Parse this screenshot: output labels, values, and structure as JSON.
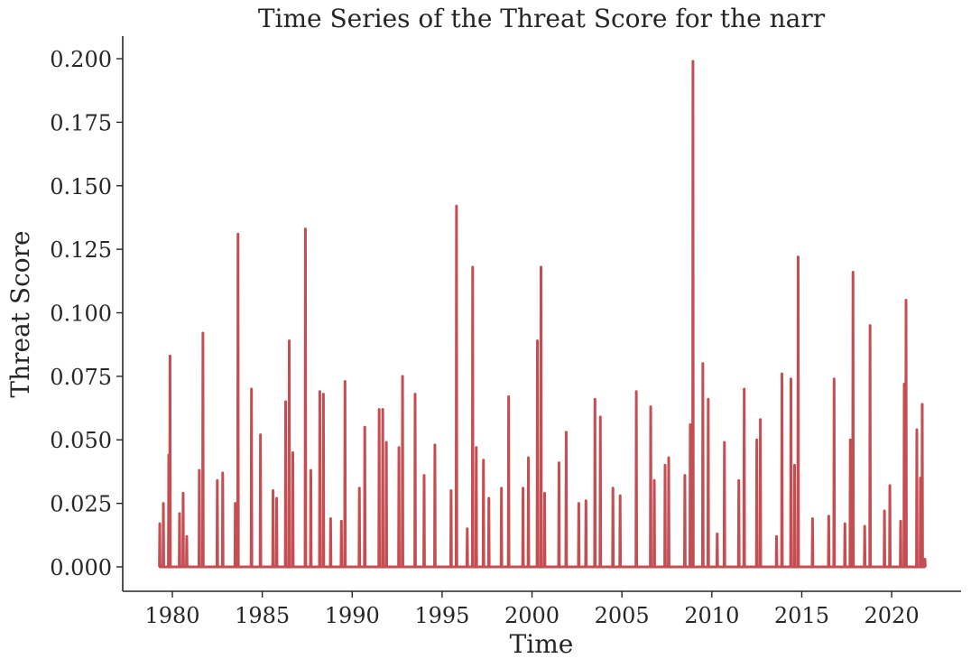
{
  "chart_data": {
    "type": "line",
    "title": "Time Series of the Threat Score for the narr",
    "xlabel": "Time",
    "ylabel": "Threat Score",
    "xlim": [
      1977.24,
      2023.86
    ],
    "ylim": [
      -0.0096,
      0.2089
    ],
    "xticks": [
      1980,
      1985,
      1990,
      1995,
      2000,
      2005,
      2010,
      2015,
      2020
    ],
    "yticks": [
      {
        "value": 0,
        "label": "0.000"
      },
      {
        "value": 0.025,
        "label": "0.025"
      },
      {
        "value": 0.05,
        "label": "0.050"
      },
      {
        "value": 0.075,
        "label": "0.075"
      },
      {
        "value": 0.1,
        "label": "0.100"
      },
      {
        "value": 0.125,
        "label": "0.125"
      },
      {
        "value": 0.15,
        "label": "0.150"
      },
      {
        "value": 0.175,
        "label": "0.175"
      },
      {
        "value": 0.2,
        "label": "0.200"
      }
    ],
    "color": "#c44e52",
    "x": [
      1979.28,
      1979.3,
      1979.32,
      1979.48,
      1979.5,
      1979.52,
      1979.78,
      1979.8,
      1979.82,
      1979.85,
      1979.87,
      1979.89,
      1980.38,
      1980.4,
      1980.42,
      1980.58,
      1980.6,
      1980.62,
      1980.78,
      1980.8,
      1980.82,
      1981.48,
      1981.5,
      1981.52,
      1981.68,
      1981.7,
      1981.72,
      1982.48,
      1982.5,
      1982.52,
      1982.78,
      1982.8,
      1982.82,
      1983.48,
      1983.5,
      1983.52,
      1983.63,
      1983.65,
      1983.67,
      1984.38,
      1984.4,
      1984.42,
      1984.88,
      1984.9,
      1984.92,
      1985.58,
      1985.6,
      1985.62,
      1985.78,
      1985.8,
      1985.82,
      1986.28,
      1986.3,
      1986.32,
      1986.48,
      1986.5,
      1986.52,
      1986.68,
      1986.7,
      1986.72,
      1987.38,
      1987.4,
      1987.42,
      1987.68,
      1987.7,
      1987.72,
      1988.18,
      1988.2,
      1988.22,
      1988.38,
      1988.4,
      1988.42,
      1988.78,
      1988.8,
      1988.82,
      1989.38,
      1989.4,
      1989.42,
      1989.58,
      1989.6,
      1989.62,
      1990.38,
      1990.4,
      1990.42,
      1990.68,
      1990.7,
      1990.72,
      1991.48,
      1991.5,
      1991.52,
      1991.68,
      1991.7,
      1991.72,
      1991.88,
      1991.9,
      1991.92,
      1992.58,
      1992.6,
      1992.62,
      1992.78,
      1992.8,
      1992.82,
      1993.48,
      1993.5,
      1993.52,
      1993.98,
      1994.0,
      1994.02,
      1994.58,
      1994.6,
      1994.62,
      1995.48,
      1995.5,
      1995.52,
      1995.78,
      1995.8,
      1995.82,
      1996.38,
      1996.4,
      1996.42,
      1996.68,
      1996.7,
      1996.72,
      1996.88,
      1996.9,
      1996.92,
      1997.28,
      1997.3,
      1997.32,
      1997.58,
      1997.6,
      1997.62,
      1998.28,
      1998.3,
      1998.32,
      1998.68,
      1998.7,
      1998.72,
      1999.48,
      1999.5,
      1999.52,
      1999.78,
      1999.8,
      1999.82,
      2000.28,
      2000.3,
      2000.32,
      2000.48,
      2000.5,
      2000.52,
      2000.68,
      2000.7,
      2000.72,
      2001.48,
      2001.5,
      2001.52,
      2001.88,
      2001.9,
      2001.92,
      2002.58,
      2002.6,
      2002.62,
      2002.98,
      2003.0,
      2003.02,
      2003.48,
      2003.5,
      2003.52,
      2003.78,
      2003.8,
      2003.82,
      2004.48,
      2004.5,
      2004.52,
      2004.88,
      2004.9,
      2004.92,
      2005.78,
      2005.8,
      2005.82,
      2006.58,
      2006.6,
      2006.62,
      2006.78,
      2006.8,
      2006.82,
      2007.38,
      2007.4,
      2007.42,
      2007.58,
      2007.6,
      2007.62,
      2008.48,
      2008.5,
      2008.52,
      2008.78,
      2008.8,
      2008.82,
      2008.93,
      2008.95,
      2008.97,
      2009.48,
      2009.5,
      2009.52,
      2009.78,
      2009.8,
      2009.82,
      2010.28,
      2010.3,
      2010.32,
      2010.68,
      2010.7,
      2010.72,
      2011.48,
      2011.5,
      2011.52,
      2011.78,
      2011.8,
      2011.82,
      2012.48,
      2012.5,
      2012.52,
      2012.68,
      2012.7,
      2012.72,
      2013.58,
      2013.6,
      2013.62,
      2013.88,
      2013.9,
      2013.92,
      2014.38,
      2014.4,
      2014.42,
      2014.58,
      2014.6,
      2014.62,
      2014.78,
      2014.8,
      2014.82,
      2015.58,
      2015.6,
      2015.62,
      2016.48,
      2016.5,
      2016.52,
      2016.78,
      2016.8,
      2016.82,
      2017.38,
      2017.4,
      2017.42,
      2017.68,
      2017.7,
      2017.72,
      2017.83,
      2017.85,
      2017.87,
      2018.48,
      2018.5,
      2018.52,
      2018.78,
      2018.8,
      2018.82,
      2019.58,
      2019.6,
      2019.62,
      2019.88,
      2019.9,
      2019.92,
      2020.48,
      2020.5,
      2020.52,
      2020.68,
      2020.7,
      2020.72,
      2020.78,
      2020.8,
      2020.82,
      2021.38,
      2021.4,
      2021.42,
      2021.58,
      2021.6,
      2021.62,
      2021.68,
      2021.7,
      2021.72,
      2021.83,
      2021.85,
      2021.87
    ],
    "values": [
      0,
      0.017,
      0,
      0,
      0.025,
      0,
      0,
      0.044,
      0,
      0,
      0.083,
      0,
      0,
      0.021,
      0,
      0,
      0.029,
      0,
      0,
      0.012,
      0,
      0,
      0.038,
      0,
      0,
      0.092,
      0,
      0,
      0.034,
      0,
      0,
      0.037,
      0,
      0,
      0.025,
      0,
      0,
      0.131,
      0,
      0,
      0.07,
      0,
      0,
      0.052,
      0,
      0,
      0.03,
      0,
      0,
      0.027,
      0,
      0,
      0.065,
      0,
      0,
      0.089,
      0,
      0,
      0.045,
      0,
      0,
      0.133,
      0,
      0,
      0.038,
      0,
      0,
      0.069,
      0,
      0,
      0.068,
      0,
      0,
      0.019,
      0,
      0,
      0.018,
      0,
      0,
      0.073,
      0,
      0,
      0.031,
      0,
      0,
      0.055,
      0,
      0,
      0.062,
      0,
      0,
      0.062,
      0,
      0,
      0.049,
      0,
      0,
      0.047,
      0,
      0,
      0.075,
      0,
      0,
      0.068,
      0,
      0,
      0.036,
      0,
      0,
      0.048,
      0,
      0,
      0.03,
      0,
      0,
      0.142,
      0,
      0,
      0.015,
      0,
      0,
      0.118,
      0,
      0,
      0.047,
      0,
      0,
      0.042,
      0,
      0,
      0.027,
      0,
      0,
      0.031,
      0,
      0,
      0.067,
      0,
      0,
      0.031,
      0,
      0,
      0.043,
      0,
      0,
      0.089,
      0,
      0,
      0.118,
      0,
      0,
      0.029,
      0,
      0,
      0.041,
      0,
      0,
      0.053,
      0,
      0,
      0.025,
      0,
      0,
      0.026,
      0,
      0,
      0.066,
      0,
      0,
      0.059,
      0,
      0,
      0.031,
      0,
      0,
      0.028,
      0,
      0,
      0.069,
      0,
      0,
      0.063,
      0,
      0,
      0.034,
      0,
      0,
      0.04,
      0,
      0,
      0.043,
      0,
      0,
      0.036,
      0,
      0,
      0.056,
      0,
      0,
      0.199,
      0,
      0,
      0.08,
      0,
      0,
      0.066,
      0,
      0,
      0.013,
      0,
      0,
      0.049,
      0,
      0,
      0.034,
      0,
      0,
      0.07,
      0,
      0,
      0.05,
      0,
      0,
      0.058,
      0,
      0,
      0.012,
      0,
      0,
      0.076,
      0,
      0,
      0.074,
      0,
      0,
      0.04,
      0,
      0,
      0.122,
      0,
      0,
      0.019,
      0,
      0,
      0.02,
      0,
      0,
      0.074,
      0,
      0,
      0.017,
      0,
      0,
      0.05,
      0,
      0,
      0.116,
      0,
      0,
      0.016,
      0,
      0,
      0.095,
      0,
      0,
      0.022,
      0,
      0,
      0.032,
      0,
      0,
      0.018,
      0,
      0,
      0.072,
      0,
      0,
      0.105,
      0,
      0,
      0.054,
      0,
      0,
      0.035,
      0,
      0,
      0.064,
      0,
      0,
      0.003,
      0
    ]
  }
}
